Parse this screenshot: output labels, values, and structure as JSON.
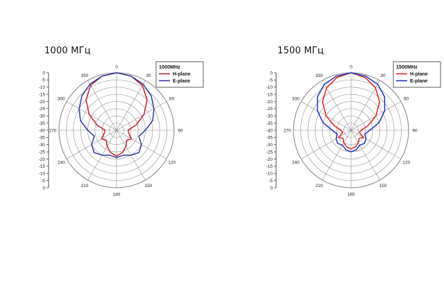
{
  "chart_data": [
    {
      "type": "polar-line",
      "title": "1000 МГц",
      "legend_title": "1000MHz",
      "legend_position": "top-right",
      "angle_ticks": [
        "0",
        "30",
        "60",
        "90",
        "120",
        "150",
        "180",
        "210",
        "240",
        "270",
        "300",
        "330"
      ],
      "radial_ticks": [
        "0",
        "-5",
        "-10",
        "-15",
        "-20",
        "-25",
        "-30",
        "-35",
        "-40",
        "-35",
        "-30",
        "-25",
        "-20",
        "-15",
        "-10",
        "-5",
        "0"
      ],
      "r_range": [
        -40,
        0
      ],
      "grid": true,
      "series": [
        {
          "name": "H-plane",
          "color": "#c0202a",
          "angles": [
            0,
            15,
            30,
            45,
            60,
            75,
            90,
            105,
            120,
            135,
            150,
            165,
            180,
            195,
            210,
            225,
            240,
            255,
            270,
            285,
            300,
            315,
            330,
            345
          ],
          "values": [
            0,
            -1,
            -4,
            -10,
            -18,
            -26,
            -32,
            -31,
            -28,
            -30,
            -27,
            -24,
            -22,
            -24,
            -27,
            -30,
            -28,
            -31,
            -32,
            -26,
            -18,
            -10,
            -4,
            -1
          ]
        },
        {
          "name": "E-plane",
          "color": "#2a3aa0",
          "angles": [
            0,
            15,
            30,
            45,
            60,
            75,
            90,
            105,
            120,
            135,
            150,
            165,
            180,
            195,
            210,
            225,
            240,
            255,
            270,
            285,
            300,
            315,
            330,
            345
          ],
          "values": [
            0,
            -1,
            -3,
            -6,
            -10,
            -14,
            -20,
            -24,
            -20,
            -18,
            -20,
            -22,
            -21,
            -22,
            -20,
            -18,
            -20,
            -24,
            -20,
            -14,
            -10,
            -6,
            -3,
            -1
          ]
        }
      ]
    },
    {
      "type": "polar-line",
      "title": "1500 МГц",
      "legend_title": "1500MHz",
      "legend_position": "top-right",
      "angle_ticks": [
        "0",
        "30",
        "60",
        "90",
        "120",
        "150",
        "180",
        "210",
        "240",
        "270",
        "300",
        "330"
      ],
      "radial_ticks": [
        "0",
        "-5",
        "-10",
        "-15",
        "-20",
        "-25",
        "-30",
        "-35",
        "-40",
        "-35",
        "-30",
        "-25",
        "-20",
        "-15",
        "-10",
        "-5",
        "0"
      ],
      "r_range": [
        -40,
        0
      ],
      "grid": true,
      "series": [
        {
          "name": "H-plane",
          "color": "#e02020",
          "angles": [
            0,
            15,
            30,
            45,
            60,
            75,
            90,
            105,
            120,
            135,
            150,
            165,
            180,
            195,
            210,
            225,
            240,
            255,
            270,
            285,
            300,
            315,
            330,
            345
          ],
          "values": [
            0,
            -2,
            -6,
            -12,
            -20,
            -28,
            -33,
            -34,
            -30,
            -32,
            -30,
            -28,
            -27,
            -28,
            -30,
            -32,
            -30,
            -34,
            -33,
            -28,
            -20,
            -12,
            -6,
            -2
          ]
        },
        {
          "name": "E-plane",
          "color": "#1a30c0",
          "angles": [
            0,
            15,
            30,
            45,
            60,
            75,
            90,
            105,
            120,
            135,
            150,
            165,
            180,
            195,
            210,
            225,
            240,
            255,
            270,
            285,
            300,
            315,
            330,
            345
          ],
          "values": [
            0,
            -1,
            -3,
            -7,
            -13,
            -20,
            -27,
            -30,
            -28,
            -27,
            -28,
            -26,
            -25,
            -26,
            -28,
            -27,
            -28,
            -30,
            -27,
            -20,
            -13,
            -7,
            -3,
            -1
          ]
        }
      ]
    }
  ]
}
